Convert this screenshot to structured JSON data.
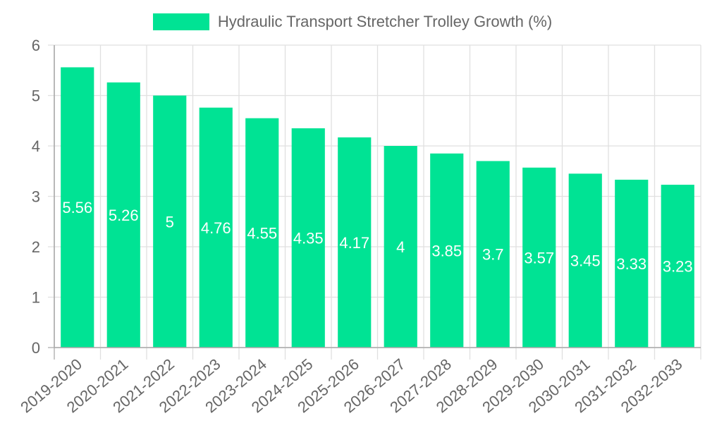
{
  "legend": {
    "label": "Hydraulic Transport Stretcher Trolley Growth (%)",
    "color": "#00e394"
  },
  "chart_data": {
    "type": "bar",
    "title": "",
    "xlabel": "",
    "ylabel": "",
    "ylim": [
      0,
      6
    ],
    "yticks": [
      0,
      1,
      2,
      3,
      4,
      5,
      6
    ],
    "grid": true,
    "legend_position": "top",
    "categories": [
      "2019-2020",
      "2020-2021",
      "2021-2022",
      "2022-2023",
      "2023-2024",
      "2024-2025",
      "2025-2026",
      "2026-2027",
      "2027-2028",
      "2028-2029",
      "2029-2030",
      "2030-2031",
      "2031-2032",
      "2032-2033"
    ],
    "series": [
      {
        "name": "Hydraulic Transport Stretcher Trolley Growth (%)",
        "color": "#00e394",
        "values": [
          5.56,
          5.26,
          5,
          4.76,
          4.55,
          4.35,
          4.17,
          4,
          3.85,
          3.7,
          3.57,
          3.45,
          3.33,
          3.23
        ],
        "data_labels": [
          "5.56",
          "5.26",
          "5",
          "4.76",
          "4.55",
          "4.35",
          "4.17",
          "4",
          "3.85",
          "3.7",
          "3.57",
          "3.45",
          "3.33",
          "3.23"
        ]
      }
    ]
  }
}
